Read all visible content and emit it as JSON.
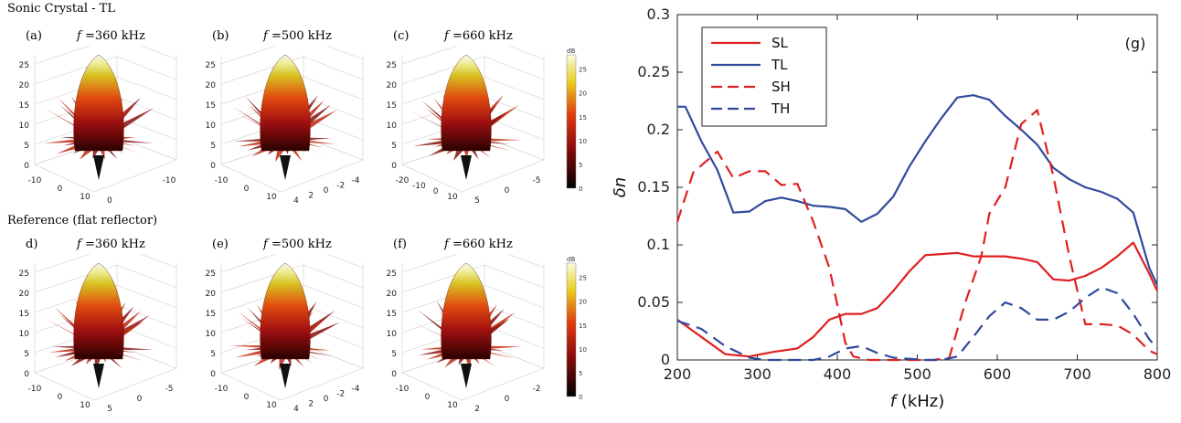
{
  "left": {
    "section_top": "Sonic Crystal - TL",
    "section_bottom": "Reference (flat reflector)",
    "colorbar_unit": "dB",
    "colorbar_ticks": [
      "25",
      "20",
      "15",
      "10",
      "5",
      "0"
    ],
    "panels": [
      {
        "label": "(a)",
        "freq": "f",
        "freq_rest": " =360 kHz",
        "zticks": [
          "25",
          "20",
          "15",
          "10",
          "5",
          "0"
        ],
        "xticks": [
          "-10",
          "0",
          "10"
        ],
        "yticks": [
          "0",
          "-10"
        ]
      },
      {
        "label": "(b)",
        "freq": "f",
        "freq_rest": " =500 kHz",
        "zticks": [
          "25",
          "20",
          "15",
          "10",
          "5",
          "0"
        ],
        "xticks": [
          "-10",
          "0",
          "10"
        ],
        "yticks": [
          "4",
          "2",
          "0",
          "-2",
          "-4"
        ]
      },
      {
        "label": "(c)",
        "freq": "f",
        "freq_rest": " =660 kHz",
        "zticks": [
          "25",
          "20",
          "15",
          "10",
          "5",
          "0"
        ],
        "xticks": [
          "-20",
          "-10",
          "0",
          "10"
        ],
        "yticks": [
          "5",
          "0",
          "-5"
        ]
      },
      {
        "label": "d)",
        "freq": "f",
        "freq_rest": " =360 kHz",
        "zticks": [
          "25",
          "20",
          "15",
          "10",
          "5",
          "0"
        ],
        "xticks": [
          "-10",
          "0",
          "10"
        ],
        "yticks": [
          "5",
          "0",
          "-5"
        ]
      },
      {
        "label": "(e)",
        "freq": "f",
        "freq_rest": " =500 kHz",
        "zticks": [
          "25",
          "20",
          "15",
          "10",
          "5",
          "0"
        ],
        "xticks": [
          "-10",
          "0",
          "10"
        ],
        "yticks": [
          "4",
          "2",
          "0",
          "-2",
          "-4"
        ]
      },
      {
        "label": "(f)",
        "freq": "f",
        "freq_rest": " =660 kHz",
        "zticks": [
          "25",
          "20",
          "15",
          "10",
          "5",
          "0"
        ],
        "xticks": [
          "-10",
          "0",
          "10"
        ],
        "yticks": [
          "2",
          "0",
          "-2"
        ]
      }
    ]
  },
  "chart_data": {
    "type": "line",
    "panel_label": "(g)",
    "xlabel_var": "f",
    "xlabel_unit": " (kHz)",
    "ylabel": "δn",
    "xlim": [
      200,
      800
    ],
    "ylim": [
      0,
      0.3
    ],
    "xticks": [
      200,
      300,
      400,
      500,
      600,
      700,
      800
    ],
    "yticks": [
      0,
      0.05,
      0.1,
      0.15,
      0.2,
      0.25,
      0.3
    ],
    "legend_position": "top-left",
    "series": [
      {
        "name": "SL",
        "color": "#e02020",
        "dash": "solid",
        "x": [
          200,
          230,
          260,
          290,
          320,
          350,
          370,
          390,
          410,
          430,
          450,
          470,
          490,
          510,
          530,
          550,
          570,
          590,
          610,
          630,
          650,
          670,
          690,
          710,
          730,
          750,
          770,
          790,
          800
        ],
        "y": [
          0.035,
          0.02,
          0.005,
          0.003,
          0.007,
          0.01,
          0.02,
          0.035,
          0.04,
          0.04,
          0.045,
          0.06,
          0.077,
          0.091,
          0.092,
          0.093,
          0.09,
          0.09,
          0.09,
          0.088,
          0.085,
          0.07,
          0.069,
          0.073,
          0.08,
          0.09,
          0.102,
          0.075,
          0.06
        ]
      },
      {
        "name": "TL",
        "color": "#2f4a9c",
        "dash": "solid",
        "x": [
          200,
          210,
          230,
          250,
          270,
          290,
          310,
          330,
          350,
          370,
          390,
          410,
          430,
          450,
          470,
          490,
          510,
          530,
          550,
          570,
          590,
          610,
          630,
          650,
          670,
          690,
          710,
          730,
          750,
          770,
          790,
          800
        ],
        "y": [
          0.22,
          0.22,
          0.19,
          0.165,
          0.128,
          0.129,
          0.138,
          0.141,
          0.138,
          0.134,
          0.133,
          0.131,
          0.12,
          0.127,
          0.142,
          0.168,
          0.19,
          0.21,
          0.228,
          0.23,
          0.226,
          0.212,
          0.2,
          0.187,
          0.167,
          0.157,
          0.15,
          0.146,
          0.14,
          0.128,
          0.08,
          0.065
        ]
      },
      {
        "name": "SH",
        "color": "#e02020",
        "dash": "dashed",
        "x": [
          200,
          220,
          250,
          270,
          290,
          310,
          330,
          350,
          370,
          390,
          400,
          410,
          420,
          440,
          460,
          480,
          500,
          520,
          540,
          560,
          580,
          590,
          610,
          630,
          650,
          670,
          690,
          710,
          730,
          750,
          770,
          790,
          800
        ],
        "y": [
          0.12,
          0.163,
          0.181,
          0.158,
          0.164,
          0.164,
          0.152,
          0.153,
          0.12,
          0.08,
          0.048,
          0.015,
          0.003,
          0.0,
          0.0,
          0.0,
          0.0,
          0.0,
          0.002,
          0.05,
          0.09,
          0.127,
          0.15,
          0.205,
          0.217,
          0.16,
          0.09,
          0.031,
          0.031,
          0.03,
          0.022,
          0.008,
          0.005
        ]
      },
      {
        "name": "TH",
        "color": "#2f4a9c",
        "dash": "dashed",
        "x": [
          200,
          230,
          260,
          290,
          310,
          330,
          350,
          370,
          390,
          410,
          430,
          450,
          470,
          490,
          510,
          530,
          550,
          570,
          590,
          610,
          630,
          650,
          670,
          690,
          710,
          730,
          750,
          770,
          790,
          800
        ],
        "y": [
          0.034,
          0.027,
          0.012,
          0.002,
          0.0,
          0.0,
          0.0,
          0.0,
          0.003,
          0.01,
          0.012,
          0.006,
          0.002,
          0.001,
          0.0,
          0.0,
          0.003,
          0.02,
          0.038,
          0.05,
          0.045,
          0.035,
          0.035,
          0.042,
          0.054,
          0.063,
          0.058,
          0.04,
          0.018,
          0.01
        ]
      }
    ]
  }
}
